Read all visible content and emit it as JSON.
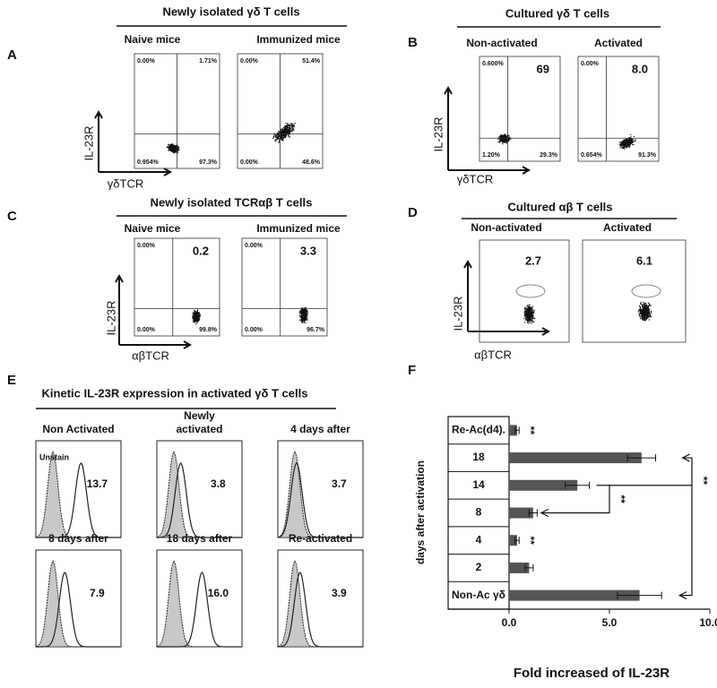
{
  "panel_labels": [
    "A",
    "B",
    "C",
    "D",
    "E",
    "F"
  ],
  "dot_panels": [
    {
      "title": "Newly isolated γδ T cells",
      "subtitles": [
        "Naive mice",
        "Immunized mice"
      ],
      "y_label": "IL-23R",
      "x_label": "γδTCR",
      "plots": [
        {
          "upper_left": "0.00%",
          "upper_right": "1.71%",
          "lower_left": "0.954%",
          "lower_right": "97.3%"
        },
        {
          "upper_left": "0.00%",
          "upper_right": "51.4%",
          "lower_left": "0.00%",
          "lower_right": "48.6%"
        }
      ]
    },
    {
      "title": "Cultured  γδ T cells",
      "subtitles": [
        "Non-activated",
        "Activated"
      ],
      "y_label": "IL-23R",
      "x_label": "γδTCR",
      "plots": [
        {
          "value": "69",
          "upper_left": "0.600%",
          "lower_left": "1.20%",
          "lower_right": "29.3%"
        },
        {
          "value": "8.0",
          "upper_left": "0.00%",
          "lower_left": "0.654%",
          "lower_right": "91.3%"
        }
      ]
    },
    {
      "title": "Newly isolated TCRαβ T cells",
      "subtitles": [
        "Naive mice",
        "Immunized mice"
      ],
      "y_label": "IL-23R",
      "x_label": "αβTCR",
      "plots": [
        {
          "value": "0.2",
          "upper_left": "0.00%",
          "lower_left": "0.00%",
          "lower_right": "99.8%"
        },
        {
          "value": "3.3",
          "upper_left": "0.00%",
          "lower_left": "0.00%",
          "lower_right": "96.7%"
        }
      ]
    },
    {
      "title": "Cultured  αβ T cells",
      "subtitles": [
        "Non-activated",
        "Activated"
      ],
      "y_label": "IL-23R",
      "x_label": "αβTCR",
      "plots": [
        {
          "value": "2.7"
        },
        {
          "value": "6.1"
        }
      ]
    }
  ],
  "histogram_panel": {
    "title": "Kinetic  IL-23R expression  in activated γδ T cells",
    "unstain_label": "Unstain",
    "plots": [
      {
        "title": "Non Activated",
        "value_label": "13.7"
      },
      {
        "title": "Newly activated",
        "value_label": "3.8"
      },
      {
        "title": "4 days after",
        "value_label": "3.7"
      },
      {
        "title": "8 days after",
        "value_label": "7.9"
      },
      {
        "title": "18 days after",
        "value_label": "16.0"
      },
      {
        "title": "Re-activated",
        "value_label": "3.9"
      }
    ]
  },
  "chart_data": {
    "type": "hbar",
    "x_label": "Fold increased of IL-23R",
    "y_label": "days after activation",
    "categories": [
      "Re-Ac(d4).",
      "18",
      "14",
      "8",
      "4",
      "2",
      "Non-Ac γδ"
    ],
    "values": [
      0.4,
      6.6,
      3.4,
      1.2,
      0.4,
      1.0,
      6.5
    ],
    "errors": [
      0.1,
      0.7,
      0.6,
      0.2,
      0.1,
      0.2,
      1.1
    ],
    "color": "#555555",
    "xlim": [
      0,
      10
    ],
    "xticks": [
      {
        "value": 0,
        "label": "0.0"
      },
      {
        "value": 5,
        "label": "5.0"
      },
      {
        "value": 10,
        "label": "10.0"
      }
    ],
    "annotations": [
      "**",
      "**",
      "**",
      "**"
    ]
  }
}
